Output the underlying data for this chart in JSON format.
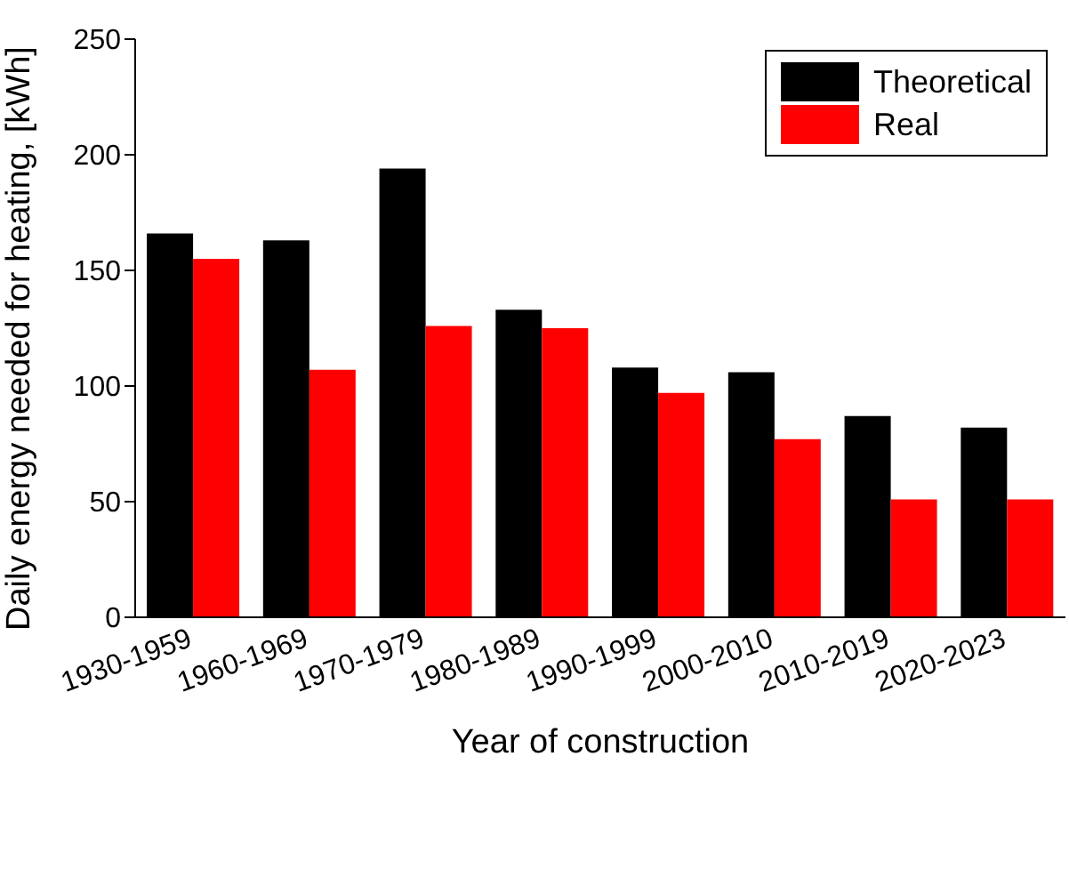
{
  "chart_data": {
    "type": "bar",
    "xlabel": "Year of construction",
    "ylabel": "Daily energy needed for heating, [kWh]",
    "categories": [
      "1930-1959",
      "1960-1969",
      "1970-1979",
      "1980-1989",
      "1990-1999",
      "2000-2010",
      "2010-2019",
      "2020-2023"
    ],
    "series": [
      {
        "name": "Theoretical",
        "color": "#000000",
        "values": [
          166,
          163,
          194,
          133,
          108,
          106,
          87,
          82
        ]
      },
      {
        "name": "Real",
        "color": "#ff0000",
        "values": [
          155,
          107,
          126,
          125,
          97,
          77,
          51,
          51
        ]
      }
    ],
    "ylim": [
      0,
      250
    ],
    "yticks": [
      0,
      50,
      100,
      150,
      200,
      250
    ],
    "grid": false,
    "legend": "top right"
  }
}
